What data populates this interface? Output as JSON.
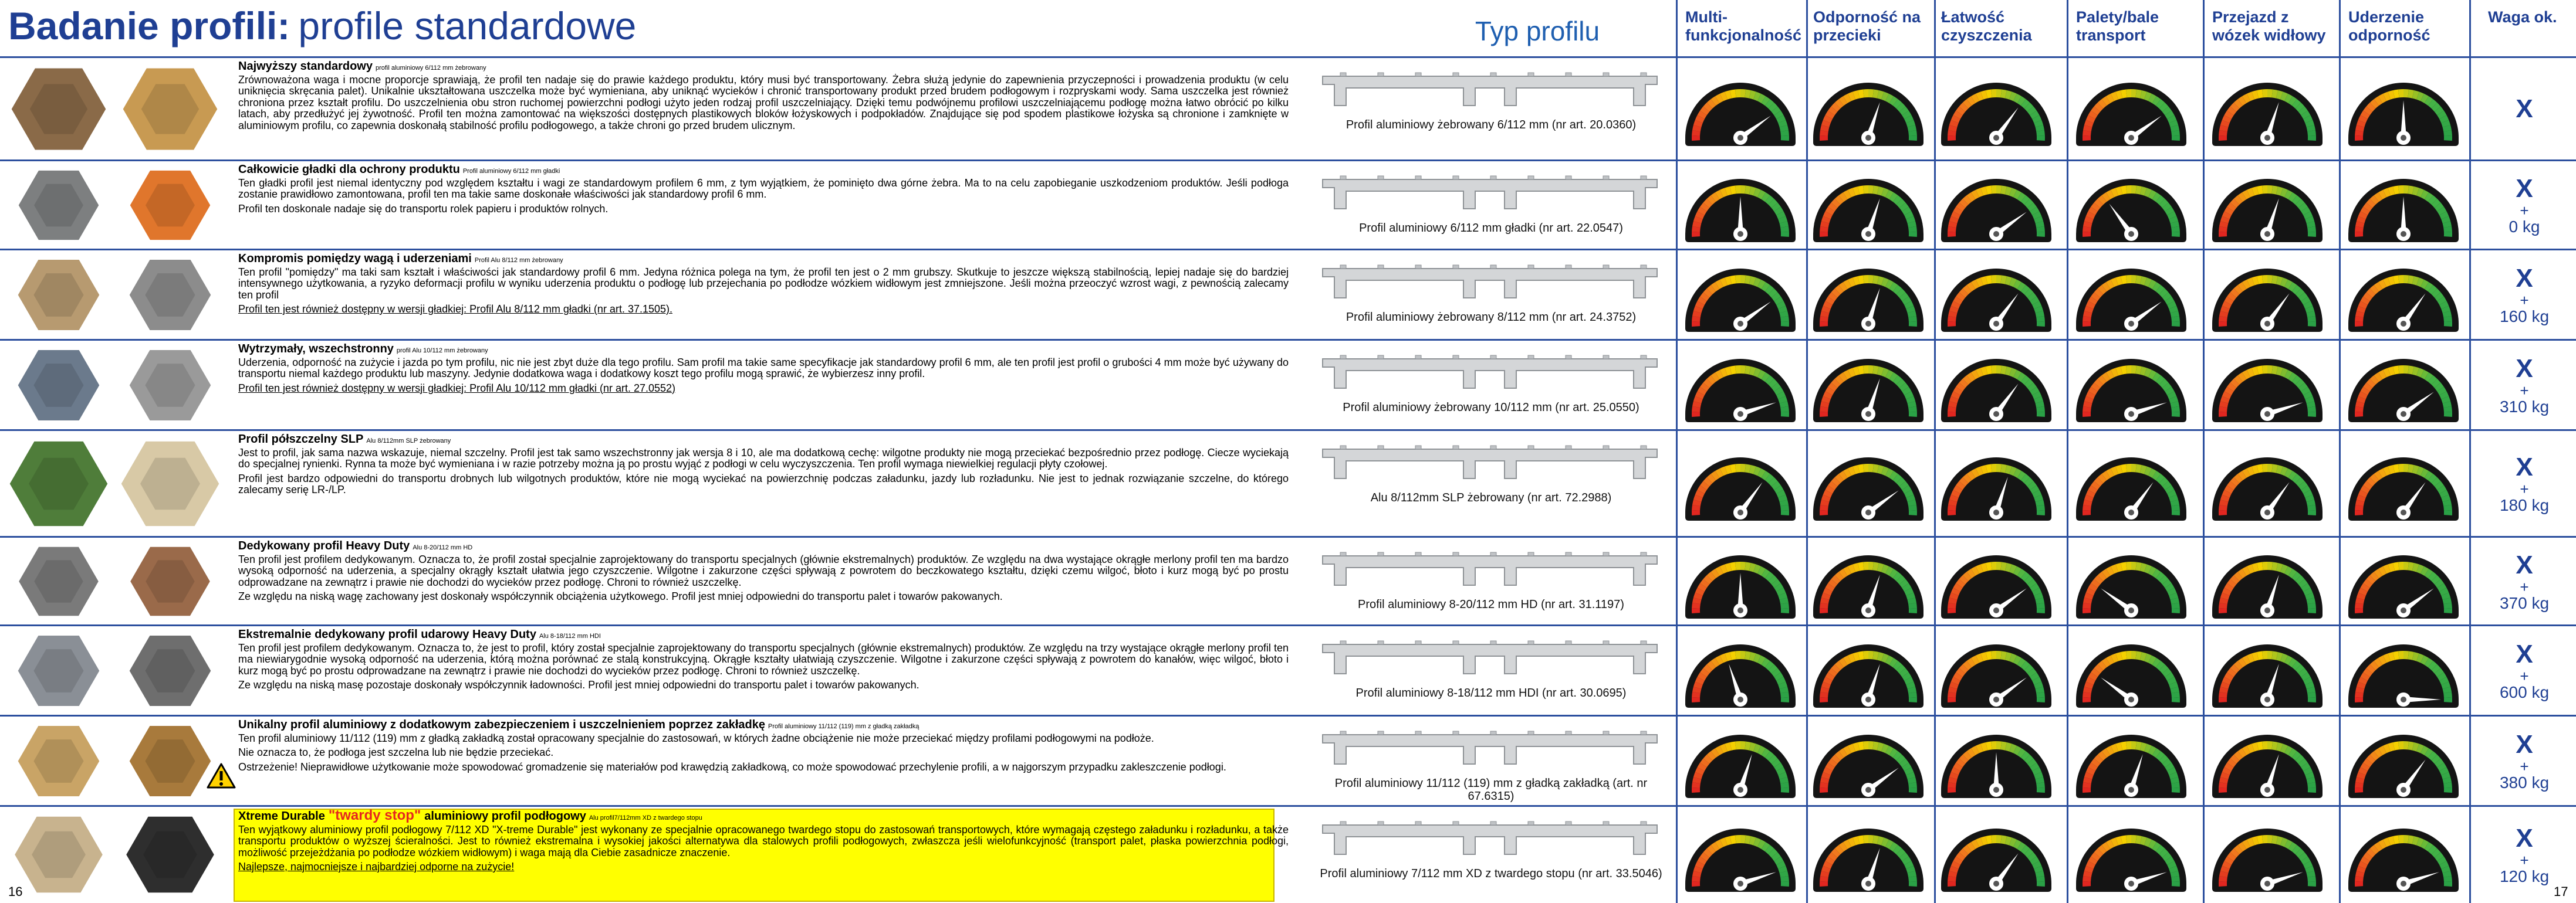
{
  "header": {
    "title_bold": "Badanie profili:",
    "title_rest": "profile standardowe",
    "profile_column": "Typ profilu",
    "columns": [
      "Multi-funkcjonalność",
      "Odporność na przecieki",
      "Łatwość czyszczenia",
      "Palety/bale transport",
      "Przejazd z wózek widłowy",
      "Uderzenie odporność",
      "Waga ok."
    ]
  },
  "gauge_range": [
    0,
    10
  ],
  "rows": [
    {
      "title": "Najwyższy standardowy",
      "subtitle": "profil aluminiowy 6/112 mm żebrowany",
      "paragraphs": [
        "Zrównoważona waga i mocne proporcje sprawiają, że profil ten nadaje się do prawie każdego produktu, który musi być transportowany. Żebra służą jedynie do zapewnienia przyczepności i prowadzenia produktu (w celu uniknięcia skręcania palet). Unikalnie ukształtowana uszczelka może być wymieniana, aby uniknąć wycieków i chronić transportowany produkt przed brudem podłogowym i rozpryskami wody. Sama uszczelka jest również chroniona przez kształt profilu. Do uszczelnienia obu stron ruchomej powierzchni podłogi użyto jeden rodzaj profil uszczelniający. Dzięki temu podwójnemu profilowi uszczelniającemu podłogę można łatwo obrócić po kilku latach, aby przedłużyć jej żywotność. Profil ten można zamontować na większości dostępnych plastikowych bloków łożyskowych i podpokładów. Znajdujące się pod spodem plastikowe łożyska są chronione i zamknięte w aluminiowym profilu, co zapewnia doskonałą stabilność profilu podłogowego, a także chroni go przed brudem ulicznym."
      ],
      "caption": "Profil aluminiowy żebrowany 6/112 mm (nr art. 20.0360)",
      "ratings": [
        8,
        6,
        7,
        8,
        6,
        5
      ],
      "weight": [
        "X"
      ]
    },
    {
      "title": "Całkowicie gładki dla ochrony produktu",
      "subtitle": "Profil aluminiowy 6/112 mm gładki",
      "paragraphs": [
        "Ten gładki profil jest niemal identyczny pod względem kształtu i wagi ze standardowym profilem 6 mm, z tym wyjątkiem, że pominięto dwa górne żebra. Ma to na celu zapobieganie uszkodzeniom produktów. Jeśli podłoga zostanie prawidłowo zamontowana, profil ten ma takie same doskonałe właściwości jak standardowy profil 6 mm.",
        "Profil ten doskonale nadaje się do transportu rolek papieru i produktów rolnych."
      ],
      "caption": "Profil aluminiowy 6/112 mm gładki (nr art. 22.0547)",
      "ratings": [
        5,
        6,
        8,
        3,
        6,
        5
      ],
      "weight": [
        "X",
        "+",
        "0 kg"
      ]
    },
    {
      "title": "Kompromis pomiędzy wagą i uderzeniami",
      "subtitle": "Profil Alu 8/112 mm żebrowany",
      "paragraphs": [
        "Ten profil \"pomiędzy\" ma taki sam kształt i właściwości jak standardowy profil 6 mm. Jedyna różnica polega na tym, że profil ten jest o 2 mm grubszy. Skutkuje to jeszcze większą stabilnością, lepiej nadaje się do bardziej intensywnego użytkowania, a ryzyko deformacji profilu w wyniku uderzenia produktu o podłogę lub przejechania po podłodze wózkiem widłowym jest zmniejszone. Jeśli można przeoczyć wzrost wagi, z pewnością zalecamy ten profil"
      ],
      "note": "Profil ten jest również dostępny w wersji gładkiej: Profil Alu 8/112 mm gładki (nr art. 37.1505).",
      "caption": "Profil aluminiowy żebrowany 8/112 mm (nr art. 24.3752)",
      "ratings": [
        8,
        6,
        7,
        8,
        7,
        7
      ],
      "weight": [
        "X",
        "+",
        "160 kg"
      ]
    },
    {
      "title": "Wytrzymały, wszechstronny",
      "subtitle": "profil Alu 10/112 mm żebrowany",
      "paragraphs": [
        "Uderzenia, odporność na zużycie i jazda po tym profilu, nic nie jest zbyt duże dla tego profilu. Sam profil ma takie same specyfikacje jak standardowy profil 6 mm, ale ten profil jest profil o grubości 4 mm może być używany do transportu niemal każdego produktu lub maszyny. Jedynie dodatkowa waga i dodatkowy koszt tego profilu mogą sprawić, że wybierzesz inny profil."
      ],
      "note": "Profil ten jest również dostępny w wersji gładkiej: Profil Alu 10/112 mm gładki (nr art. 27.0552)",
      "caption": "Profil aluminiowy żebrowany 10/112 mm (nr art. 25.0550)",
      "ratings": [
        9,
        6,
        7,
        9,
        9,
        8
      ],
      "weight": [
        "X",
        "+",
        "310 kg"
      ]
    },
    {
      "title": "Profil półszczelny SLP",
      "subtitle": "Alu 8/112mm SLP żebrowany",
      "paragraphs": [
        "Jest to profil, jak sama nazwa wskazuje, niemal szczelny. Profil jest tak samo wszechstronny jak wersja 8 i 10, ale ma dodatkową cechę: wilgotne produkty nie mogą przeciekać bezpośrednio przez podłogę. Ciecze wyciekają do specjalnej rynienki. Rynna ta może być wymieniana i w razie potrzeby można ją po prostu wyjąć z podłogi w celu wyczyszczenia. Ten profil wymaga niewielkiej regulacji płyty czołowej.",
        "Profil jest bardzo odpowiedni do transportu drobnych lub wilgotnych produktów, które nie mogą wyciekać na powierzchnię podczas załadunku, jazdy lub rozładunku. Nie jest to jednak rozwiązanie szczelne, do którego zalecamy serię LR-/LP."
      ],
      "caption": "Alu 8/112mm SLP żebrowany (nr art. 72.2988)",
      "ratings": [
        7,
        8,
        6,
        7,
        7,
        7
      ],
      "weight": [
        "X",
        "+",
        "180 kg"
      ]
    },
    {
      "title": "Dedykowany profil Heavy Duty",
      "subtitle": "Alu 8-20/112 mm HD",
      "paragraphs": [
        "Ten profil jest profilem dedykowanym. Oznacza to, że profil został specjalnie zaprojektowany do transportu specjalnych (głównie ekstremalnych) produktów. Ze względu na dwa wystające okrągłe merlony profil ten ma bardzo wysoką odporność na uderzenia, a specjalny okrągły kształt ułatwia jego czyszczenie. Wilgotne i zakurzone części spływają z powrotem do beczkowatego kształtu, dzięki czemu wilgoć, błoto i kurz mogą być po prostu odprowadzane na zewnątrz i prawie nie dochodzi do wycieków przez podłogę. Chroni to również uszczelkę.",
        "Ze względu na niską wagę zachowany jest doskonały współczynnik obciążenia użytkowego. Profil jest mniej odpowiedni do transportu palet i towarów pakowanych."
      ],
      "caption": "Profil aluminiowy 8-20/112 mm HD (nr art. 31.1197)",
      "ratings": [
        5,
        6,
        8,
        2,
        6,
        8
      ],
      "weight": [
        "X",
        "+",
        "370 kg"
      ]
    },
    {
      "title": "Ekstremalnie dedykowany profil udarowy Heavy Duty",
      "subtitle": "Alu 8-18/112 mm HDI",
      "paragraphs": [
        "Ten profil jest profilem dedykowanym. Oznacza to, że jest to profil, który został specjalnie zaprojektowany do transportu specjalnych (głównie ekstremalnych) produktów. Ze względu na trzy wystające okrągłe merlony profil ten ma niewiarygodnie wysoką odporność na uderzenia, którą można porównać ze stalą konstrukcyjną. Okrągłe kształty ułatwiają czyszczenie. Wilgotne i zakurzone części spływają z powrotem do kanałów, więc wilgoć, błoto i kurz mogą być po prostu odprowadzane na zewnątrz i prawie nie dochodzi do wycieków przez podłogę. Chroni to również uszczelkę.",
        "Ze względu na niską masę pozostaje doskonały współczynnik ładowności. Profil jest mniej odpowiedni do transportu palet i towarów pakowanych."
      ],
      "caption": "Profil aluminiowy 8-18/112 mm HDI (nr art. 30.0695)",
      "ratings": [
        4,
        6,
        8,
        2,
        6,
        10
      ],
      "weight": [
        "X",
        "+",
        "600 kg"
      ]
    },
    {
      "title": "Unikalny profil aluminiowy z dodatkowym zabezpieczeniem i uszczelnieniem poprzez zakładkę",
      "subtitle": "Profil aluminiowy 11/112 (119) mm z gładką zakładką",
      "paragraphs": [
        "Ten profil aluminiowy 11/112 (119) mm z gładką zakładką został opracowany specjalnie do zastosowań, w których żadne obciążenie nie może przeciekać między profilami podłogowymi na podłoże.",
        "Nie oznacza to, że podłoga jest szczelna lub nie będzie przeciekać.",
        "Ostrzeżenie! Nieprawidłowe użytkowanie może spowodować gromadzenie się materiałów pod krawędzią zakładkową, co może spowodować przechylenie profili, a w najgorszym przypadku zakleszczenie podłogi."
      ],
      "caption": "Profil aluminiowy 11/112 (119) mm z gładką zakładką (art. nr 67.6315)",
      "ratings": [
        6,
        8,
        5,
        6,
        6,
        7
      ],
      "weight": [
        "X",
        "+",
        "380 kg"
      ]
    },
    {
      "title": "Xtreme Durable",
      "title_highlight": "\"twardy stop\"",
      "title_after": "aluminiowy profil podłogowy",
      "subtitle": "Alu profil7/112mm XD z twardego stopu",
      "paragraphs": [
        "Ten wyjątkowy aluminiowy profil podłogowy 7/112 XD \"X-treme Durable\" jest wykonany ze specjalnie opracowanego twardego stopu do zastosowań transportowych, które wymagają częstego załadunku i rozładunku, a także transportu produktów o wyższej ścieralności. Jest to również ekstremalna i wysokiej jakości alternatywa dla stalowych profili podłogowych, zwłaszcza jeśli wielofunkcyjność (transport palet, płaska powierzchnia podłogi, możliwość przejeżdżania po podłodze wózkiem widłowym) i waga mają dla Ciebie zasadnicze znaczenie."
      ],
      "note": "Najlepsze, najmocniejsze i najbardziej odporne na zużycie!",
      "caption": "Profil aluminiowy 7/112 mm XD z twardego stopu (nr art. 33.5046)",
      "ratings": [
        9,
        6,
        7,
        9,
        9,
        9
      ],
      "weight": [
        "X",
        "+",
        "120 kg"
      ]
    }
  ],
  "page_left": "16",
  "page_right": "17"
}
